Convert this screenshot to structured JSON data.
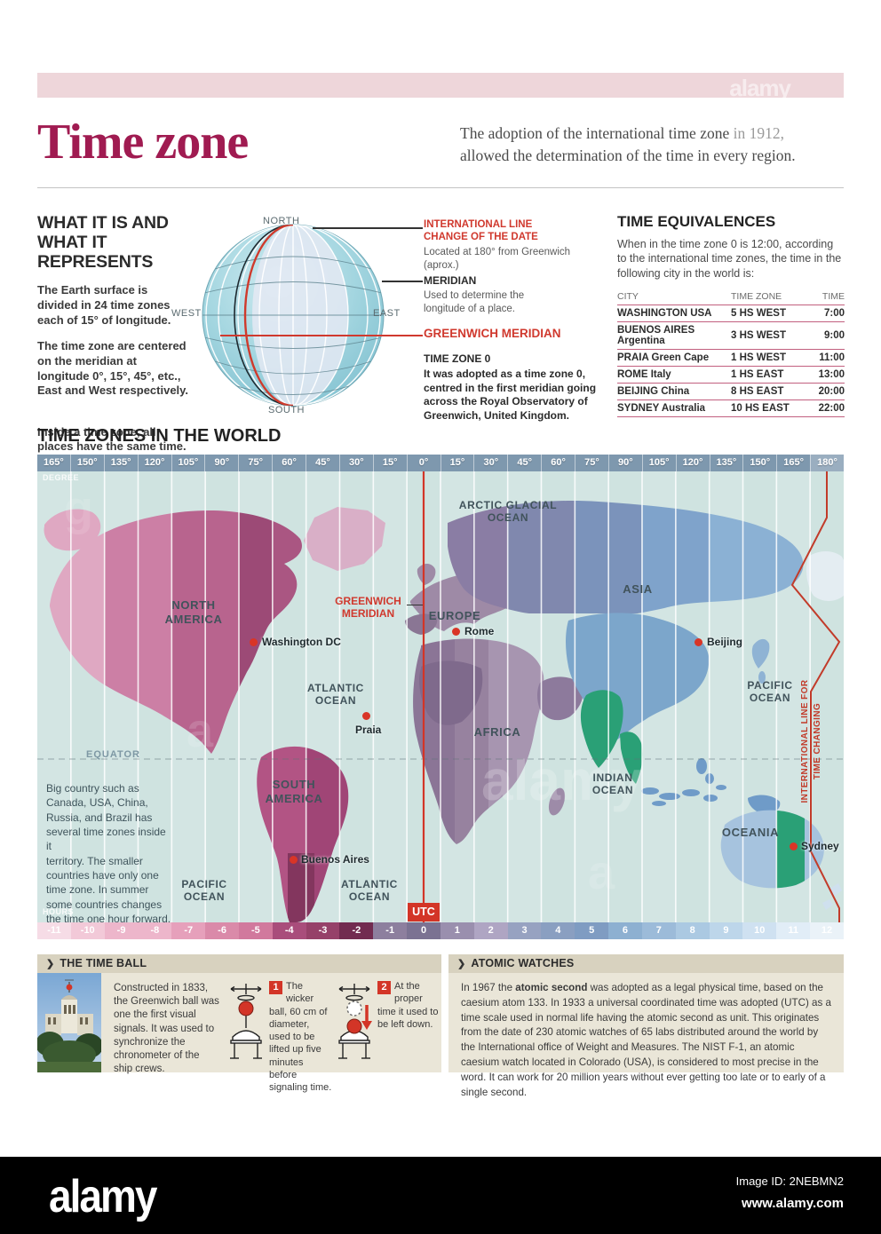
{
  "watermark": {
    "brand": "alamy",
    "image_id": "Image ID: 2NEBMN2",
    "site": "www.alamy.com"
  },
  "header": {
    "title": "Time zone",
    "subtitle_a": "The adoption of the international time zone ",
    "subtitle_b": "in 1912,",
    "subtitle_c": "allowed the determination of the time in every region."
  },
  "what_it_is": {
    "heading": "WHAT IT IS AND\nWHAT IT REPRESENTS",
    "para1": "The Earth surface is\ndivided in 24 time zones\neach of 15° of longitude.",
    "para2": "The time zone are centered\non the meridian at\nlongitude 0°, 15°, 45°, etc.,\nEast and West respectively.",
    "para3": "Inside a time zone, all\nplaces have the same time.",
    "globe": {
      "north": "NORTH",
      "south": "SOUTH",
      "east": "EAST",
      "west": "WEST"
    },
    "callouts": {
      "intl_title": "INTERNATIONAL LINE\nCHANGE OF THE DATE",
      "intl_desc": "Located at 180° from Greenwich\n(aprox.)",
      "meridian_title": "MERIDIAN",
      "meridian_desc": "Used to determine the\nlongitude of a place.",
      "greenwich_title": "GREENWICH MERIDIAN",
      "tz0_title": "TIME ZONE 0",
      "tz0_desc": "It was adopted as a time zone 0,\ncentred in the first meridian going\nacross the Royal Observatory of\nGreenwich, United Kingdom."
    }
  },
  "time_equivalences": {
    "heading": "TIME EQUIVALENCES",
    "intro": "When in the time zone 0 is 12:00, according to the international time zones, the time in the following city in the world is:",
    "columns": [
      "CITY",
      "TIME ZONE",
      "TIME"
    ],
    "rows": [
      [
        "WASHINGTON USA",
        "5 HS WEST",
        "7:00"
      ],
      [
        "BUENOS AIRES Argentina",
        "3 HS WEST",
        "9:00"
      ],
      [
        "PRAIA Green Cape",
        "1 HS WEST",
        "11:00"
      ],
      [
        "ROME Italy",
        "1 HS EAST",
        "13:00"
      ],
      [
        "BEIJING China",
        "8 HS EAST",
        "20:00"
      ],
      [
        "SYDNEY Australia",
        "10 HS EAST",
        "22:00"
      ]
    ]
  },
  "world_map": {
    "heading": "TIME ZONES IN THE WORLD",
    "degree_label": "DEGREE",
    "hours_label": "HOURS",
    "utc": "UTC",
    "degrees": [
      "165°",
      "150°",
      "135°",
      "120°",
      "105°",
      "90°",
      "75°",
      "60°",
      "45°",
      "30°",
      "15°",
      "0°",
      "15°",
      "30°",
      "45°",
      "60°",
      "75°",
      "90°",
      "105°",
      "120°",
      "135°",
      "150°",
      "165°",
      "180°"
    ],
    "hours": [
      {
        "label": "-11",
        "color": "#f6dce6"
      },
      {
        "label": "-10",
        "color": "#f2c9d8"
      },
      {
        "label": "-9",
        "color": "#edb6cb"
      },
      {
        "label": "-8",
        "color": "#edb6cb"
      },
      {
        "label": "-7",
        "color": "#e6a0bb"
      },
      {
        "label": "-6",
        "color": "#da8aa9"
      },
      {
        "label": "-5",
        "color": "#d1799d"
      },
      {
        "label": "-4",
        "color": "#a94d7b"
      },
      {
        "label": "-3",
        "color": "#964169"
      },
      {
        "label": "-2",
        "color": "#722b50"
      },
      {
        "label": "-1",
        "color": "#8d7f9e"
      },
      {
        "label": "0",
        "color": "#7b7292"
      },
      {
        "label": "1",
        "color": "#9a8fae"
      },
      {
        "label": "2",
        "color": "#afa5c3"
      },
      {
        "label": "3",
        "color": "#97a2c1"
      },
      {
        "label": "4",
        "color": "#8a9fc1"
      },
      {
        "label": "5",
        "color": "#7f9cc2"
      },
      {
        "label": "6",
        "color": "#8db0d1"
      },
      {
        "label": "7",
        "color": "#9cbbd9"
      },
      {
        "label": "8",
        "color": "#abc9e2"
      },
      {
        "label": "9",
        "color": "#bdd6ea"
      },
      {
        "label": "10",
        "color": "#cfe1f1"
      },
      {
        "label": "11",
        "color": "#e1edf7"
      },
      {
        "label": "12",
        "color": "#eaf2f8"
      }
    ],
    "labels": {
      "arctic": "ARCTIC GLACIAL\nOCEAN",
      "north_america": "NORTH\nAMERICA",
      "europe": "EUROPE",
      "asia": "ASIA",
      "africa": "AFRICA",
      "atlantic": "ATLANTIC\nOCEAN",
      "pacific_right": "PACIFIC\nOCEAN",
      "indian": "INDIAN\nOCEAN",
      "south_america": "SOUTH\nAMERICA",
      "oceania": "OCEANIA",
      "pacific_bottom": "PACIFIC\nOCEAN",
      "atlantic_bottom": "ATLANTIC\nOCEAN",
      "equator": "EQUATOR",
      "greenwich": "GREENWICH\nMERIDIAN",
      "date_line_1": "INTERNATIONAL LINE FOR",
      "date_line_2": "TIME CHANGING"
    },
    "cities": [
      {
        "name": "Washington DC"
      },
      {
        "name": "Rome"
      },
      {
        "name": "Praia"
      },
      {
        "name": "Beijing"
      },
      {
        "name": "Buenos Aires"
      },
      {
        "name": "Sydney"
      }
    ],
    "note": "Big country such as\nCanada, USA, China,\nRussia, and Brazil has\nseveral time zones inside it\nterritory. The smaller\ncountries have only one\ntime zone. In summer\nsome countries changes\nthe time one hour forward."
  },
  "time_ball": {
    "heading": "THE TIME BALL",
    "intro": "Constructed in 1833, the Greenwich ball was one the first visual signals. It was used to synchronize the chronometer of the ship crews.",
    "step1_num": "1",
    "step1": "The wicker ball, 60 cm of diameter, used to be lifted up five minutes before signaling time.",
    "step2_num": "2",
    "step2": "At the proper time it used to be left down."
  },
  "atomic_watches": {
    "heading": "ATOMIC WATCHES",
    "p_prefix": "In 1967 the ",
    "p_bold": "atomic second",
    "p_rest": " was adopted as a legal physical time, based on the caesium atom 133. In 1933 a universal coordinated time was adopted (UTC) as a time scale used in normal life having the atomic second as unit. This originates from the date of 230 atomic watches of 65 labs distributed around the world by the International office of Weight and Measures. The NIST F-1, an atomic caesium watch located in Colorado (USA), is considered to most precise in the word. It can work for 20 million years without ever getting too late or to early of a single second."
  }
}
